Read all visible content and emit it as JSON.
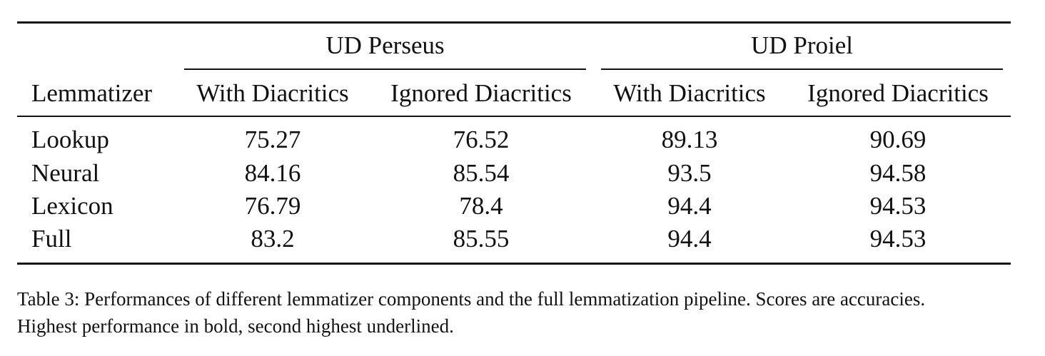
{
  "table": {
    "group_headers": [
      "UD Perseus",
      "UD Proiel"
    ],
    "column_headers": [
      "Lemmatizer",
      "With Diacritics",
      "Ignored Diacritics",
      "With Diacritics",
      "Ignored Diacritics"
    ],
    "rows": [
      [
        "Lookup",
        "75.27",
        "76.52",
        "89.13",
        "90.69"
      ],
      [
        "Neural",
        "84.16",
        "85.54",
        "93.5",
        "94.58"
      ],
      [
        "Lexicon",
        "76.79",
        "78.4",
        "94.4",
        "94.53"
      ],
      [
        "Full",
        "83.2",
        "85.55",
        "94.4",
        "94.53"
      ]
    ]
  },
  "caption": {
    "line1": "Table 3: Performances of different lemmatizer components and the full lemmatization pipeline. Scores are accuracies.",
    "line2": "Highest performance in bold, second highest underlined."
  }
}
